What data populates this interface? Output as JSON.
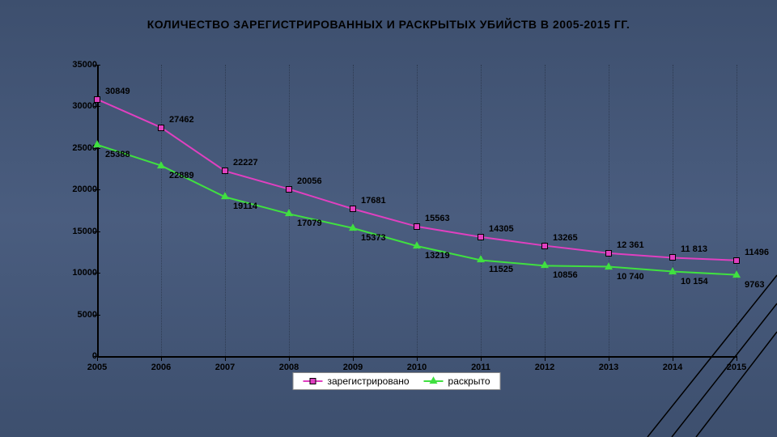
{
  "title": "КОЛИЧЕСТВО ЗАРЕГИСТРИРОВАННЫХ И РАСКРЫТЫХ УБИЙСТВ В 2005-2015 ГГ.",
  "chart": {
    "type": "line",
    "background_gradient": [
      "#3d4f6e",
      "#4a5d7f",
      "#3d4f6e"
    ],
    "xlim": [
      2005,
      2015
    ],
    "ylim": [
      0,
      35000
    ],
    "ytick_step": 5000,
    "yticks": [
      0,
      5000,
      10000,
      15000,
      20000,
      25000,
      30000,
      35000
    ],
    "xticks": [
      2005,
      2006,
      2007,
      2008,
      2009,
      2010,
      2011,
      2012,
      2013,
      2014,
      2015
    ],
    "grid_color": "rgba(0,0,0,0.3)",
    "axis_color": "#000000",
    "label_fontsize": 11,
    "title_fontsize": 14,
    "series": [
      {
        "name": "зарегистрировано",
        "color": "#e040c0",
        "marker": "square",
        "line_width": 2,
        "years": [
          2005,
          2006,
          2007,
          2008,
          2009,
          2010,
          2011,
          2012,
          2013,
          2014,
          2015
        ],
        "values": [
          30849,
          27462,
          22227,
          20056,
          17681,
          15563,
          14305,
          13265,
          12361,
          11813,
          11496
        ],
        "labels": [
          "30849",
          "27462",
          "22227",
          "20056",
          "17681",
          "15563",
          "14305",
          "13265",
          "12 361",
          "11 813",
          "11496"
        ]
      },
      {
        "name": "раскрыто",
        "color": "#40e040",
        "marker": "triangle",
        "line_width": 2,
        "years": [
          2005,
          2006,
          2007,
          2008,
          2009,
          2010,
          2011,
          2012,
          2013,
          2014,
          2015
        ],
        "values": [
          25388,
          22889,
          19114,
          17079,
          15373,
          13219,
          11525,
          10856,
          10740,
          10154,
          9763
        ],
        "labels": [
          "25388",
          "22889",
          "19114",
          "17079",
          "15373",
          "13219",
          "11525",
          "10856",
          "10 740",
          "10 154",
          "9763"
        ]
      }
    ],
    "legend": {
      "items": [
        "зарегистрировано",
        "раскрыто"
      ],
      "background": "#ffffff",
      "border": "#888888"
    }
  }
}
